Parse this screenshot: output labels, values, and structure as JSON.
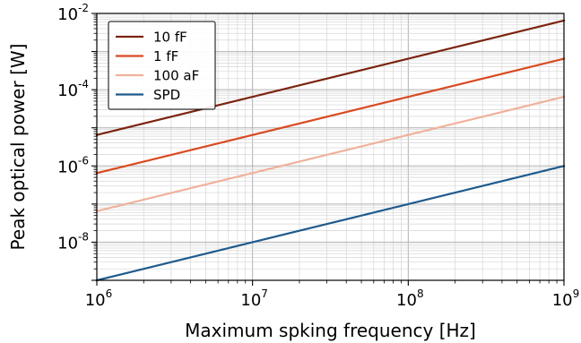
{
  "chart_data": {
    "type": "line",
    "title": "",
    "xlabel": "Maximum spking frequency [Hz]",
    "ylabel": "Peak optical power [W]",
    "xscale": "log",
    "yscale": "log",
    "xlim": [
      1000000,
      1000000000
    ],
    "ylim": [
      1e-09,
      0.01
    ],
    "grid": true,
    "legend_position": "top-left",
    "x_ticks": [
      {
        "value": 1000000,
        "base": "10",
        "exp": "6"
      },
      {
        "value": 10000000,
        "base": "10",
        "exp": "7"
      },
      {
        "value": 100000000,
        "base": "10",
        "exp": "8"
      },
      {
        "value": 1000000000,
        "base": "10",
        "exp": "9"
      }
    ],
    "y_ticks": [
      {
        "value": 1e-08,
        "base": "10",
        "exp": "-8"
      },
      {
        "value": 1e-06,
        "base": "10",
        "exp": "-6"
      },
      {
        "value": 0.0001,
        "base": "10",
        "exp": "-4"
      },
      {
        "value": 0.01,
        "base": "10",
        "exp": "-2"
      }
    ],
    "series": [
      {
        "name": "10 fF",
        "color": "#7b2410",
        "x": [
          1000000,
          1000000000
        ],
        "y": [
          6.5e-06,
          0.0065
        ]
      },
      {
        "name": "1 fF",
        "color": "#d94a21",
        "x": [
          1000000,
          1000000000
        ],
        "y": [
          6.5e-07,
          0.00065
        ]
      },
      {
        "name": "100 aF",
        "color": "#f0b19c",
        "x": [
          1000000,
          1000000000
        ],
        "y": [
          6.5e-08,
          6.5e-05
        ]
      },
      {
        "name": "SPD",
        "color": "#1f5a8c",
        "x": [
          1000000,
          1000000000
        ],
        "y": [
          1e-09,
          1e-06
        ]
      }
    ]
  }
}
